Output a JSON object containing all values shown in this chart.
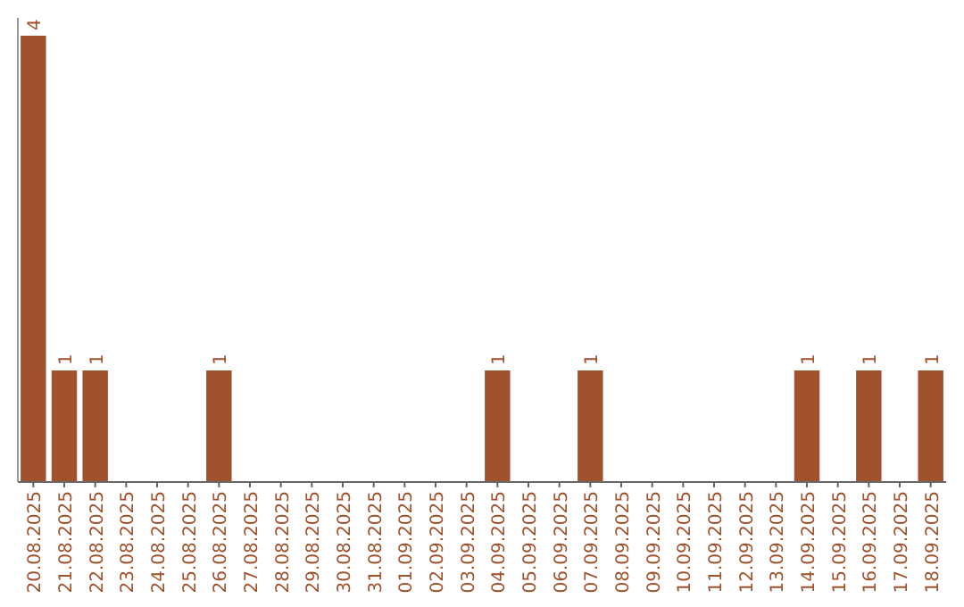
{
  "chart_data": {
    "type": "bar",
    "categories": [
      "20.08.2025",
      "21.08.2025",
      "22.08.2025",
      "23.08.2025",
      "24.08.2025",
      "25.08.2025",
      "26.08.2025",
      "27.08.2025",
      "28.08.2025",
      "29.08.2025",
      "30.08.2025",
      "31.08.2025",
      "01.09.2025",
      "02.09.2025",
      "03.09.2025",
      "04.09.2025",
      "05.09.2025",
      "06.09.2025",
      "07.09.2025",
      "08.09.2025",
      "09.09.2025",
      "10.09.2025",
      "11.09.2025",
      "12.09.2025",
      "13.09.2025",
      "14.09.2025",
      "15.09.2025",
      "16.09.2025",
      "17.09.2025",
      "18.09.2025"
    ],
    "values": [
      4,
      1,
      1,
      0,
      0,
      0,
      1,
      0,
      0,
      0,
      0,
      0,
      0,
      0,
      0,
      1,
      0,
      0,
      1,
      0,
      0,
      0,
      0,
      0,
      0,
      1,
      0,
      1,
      0,
      1
    ],
    "value_labels": [
      "4",
      "1",
      "1",
      null,
      null,
      null,
      "1",
      null,
      null,
      null,
      null,
      null,
      null,
      null,
      null,
      "1",
      null,
      null,
      "1",
      null,
      null,
      null,
      null,
      null,
      null,
      "1",
      null,
      "1",
      null,
      "1"
    ],
    "color": "#a0522d"
  }
}
